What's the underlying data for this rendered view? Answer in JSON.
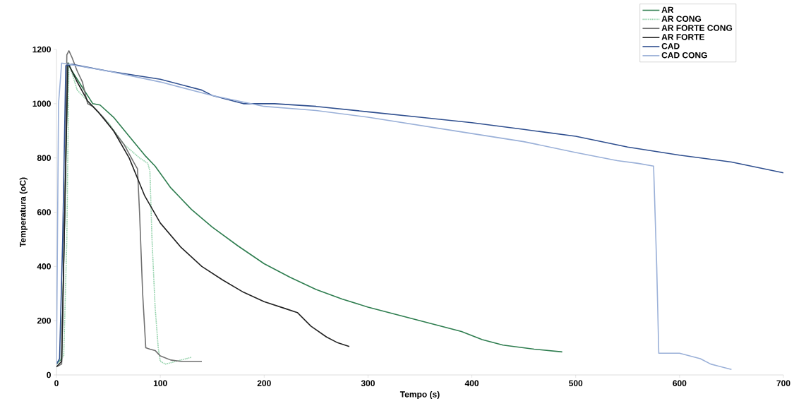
{
  "chart_data": {
    "type": "line",
    "xlabel": "Tempo (s)",
    "ylabel": "Temperatura (oC)",
    "xlim": [
      0,
      700
    ],
    "ylim": [
      0,
      1200
    ],
    "xticks": [
      0,
      100,
      200,
      300,
      400,
      500,
      600,
      700
    ],
    "yticks": [
      0,
      200,
      400,
      600,
      800,
      1000,
      1200
    ],
    "grid": false,
    "legend": "top right",
    "marker": "none",
    "series": [
      {
        "name": "AR",
        "color": "#2e7d4f",
        "line_style": "solid",
        "x": [
          0,
          5,
          8,
          11,
          15,
          25,
          35,
          42,
          55,
          70,
          85,
          95,
          110,
          130,
          150,
          175,
          200,
          225,
          250,
          275,
          300,
          330,
          360,
          390,
          410,
          430,
          460,
          487
        ],
        "values": [
          40,
          60,
          600,
          1150,
          1120,
          1060,
          1000,
          995,
          950,
          880,
          810,
          770,
          690,
          610,
          545,
          475,
          410,
          360,
          315,
          280,
          250,
          220,
          190,
          160,
          130,
          110,
          95,
          85
        ]
      },
      {
        "name": "AR CONG",
        "color": "#90d0a8",
        "line_style": "dotted",
        "x": [
          0,
          7,
          10,
          12,
          20,
          35,
          50,
          65,
          80,
          88,
          90,
          92,
          95,
          98,
          100,
          105,
          115,
          125,
          130
        ],
        "values": [
          40,
          70,
          500,
          1150,
          1050,
          990,
          930,
          850,
          800,
          780,
          750,
          500,
          250,
          100,
          50,
          40,
          50,
          60,
          65
        ]
      },
      {
        "name": "AR FORTE CONG",
        "color": "#707070",
        "line_style": "solid",
        "x": [
          0,
          5,
          8,
          10,
          12,
          15,
          20,
          25,
          30,
          35,
          45,
          55,
          65,
          75,
          78,
          80,
          83,
          86,
          90,
          95,
          100,
          110,
          120,
          140
        ],
        "values": [
          30,
          40,
          600,
          1180,
          1195,
          1170,
          1120,
          1080,
          1000,
          990,
          950,
          900,
          850,
          780,
          760,
          600,
          300,
          100,
          95,
          90,
          70,
          55,
          50,
          50
        ]
      },
      {
        "name": "AR FORTE",
        "color": "#222222",
        "line_style": "solid",
        "x": [
          0,
          5,
          8,
          11,
          20,
          30,
          40,
          55,
          70,
          85,
          100,
          120,
          140,
          160,
          180,
          200,
          220,
          232,
          245,
          260,
          270,
          282
        ],
        "values": [
          30,
          50,
          600,
          1150,
          1080,
          1010,
          970,
          900,
          800,
          660,
          560,
          470,
          400,
          350,
          305,
          270,
          245,
          230,
          180,
          140,
          120,
          105
        ]
      },
      {
        "name": "CAD",
        "color": "#2f4f8f",
        "line_style": "solid",
        "x": [
          0,
          3,
          6,
          9,
          15,
          50,
          100,
          140,
          150,
          180,
          210,
          250,
          300,
          350,
          400,
          450,
          500,
          550,
          600,
          650,
          700
        ],
        "values": [
          40,
          60,
          500,
          1140,
          1145,
          1120,
          1090,
          1050,
          1030,
          1000,
          1000,
          990,
          970,
          950,
          930,
          905,
          880,
          840,
          810,
          785,
          745
        ]
      },
      {
        "name": "CAD CONG",
        "color": "#9ab0d8",
        "line_style": "solid",
        "x": [
          0,
          2,
          5,
          50,
          100,
          150,
          200,
          250,
          300,
          350,
          400,
          450,
          500,
          540,
          560,
          575,
          578,
          580,
          600,
          620,
          630,
          650
        ],
        "values": [
          40,
          1000,
          1150,
          1120,
          1080,
          1030,
          990,
          975,
          950,
          920,
          890,
          860,
          820,
          790,
          780,
          770,
          400,
          80,
          80,
          60,
          40,
          20
        ]
      }
    ]
  }
}
